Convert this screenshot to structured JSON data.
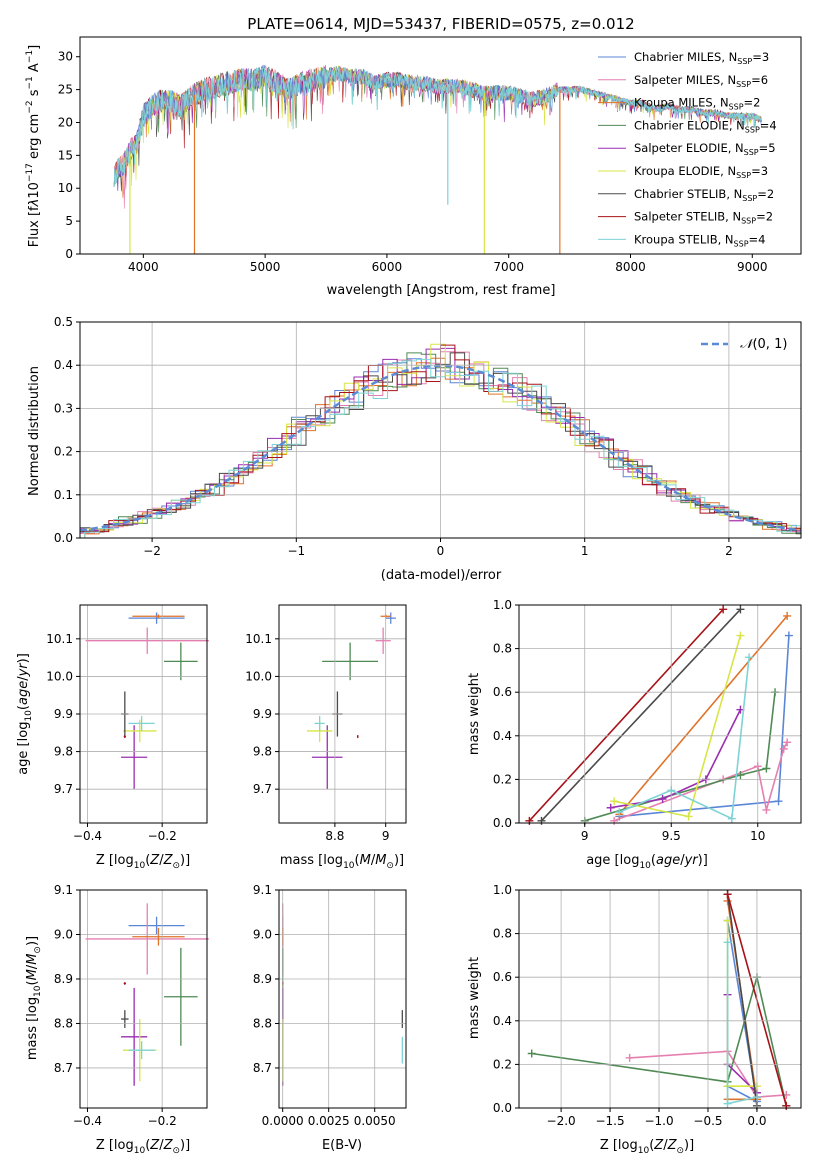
{
  "figure": {
    "title": "PLATE=0614, MJD=53437, FIBERID=0575, z=0.012"
  },
  "colors": {
    "chabrier_miles": "#5b86d6",
    "salpeter_miles": "#e57fb0",
    "kroupa_miles": "#e0732a",
    "chabrier_elodie": "#4f8a54",
    "salpeter_elodie": "#9a2db0",
    "kroupa_elodie": "#d7e645",
    "chabrier_stelib": "#4a4a4a",
    "salpeter_stelib": "#a81218",
    "kroupa_stelib": "#7ed3d6",
    "gauss": "#5b8bd6",
    "grid": "#b0b0b0"
  },
  "chart_data": [
    {
      "id": "spectrum",
      "type": "line",
      "title": "PLATE=0614, MJD=53437, FIBERID=0575, z=0.012",
      "xlabel": "wavelength [Angstrom, rest frame]",
      "ylabel": "Flux [f",
      "ylabel_full": "Flux [f_λ 10^-17 erg cm^-2 s^-1 A^-1]",
      "xlim": [
        3480,
        9400
      ],
      "ylim": [
        0,
        33
      ],
      "xticks": [
        4000,
        5000,
        6000,
        7000,
        8000,
        9000
      ],
      "yticks": [
        0,
        5,
        10,
        15,
        20,
        25,
        30
      ],
      "grid": false,
      "legend": "top-right",
      "legend_entries": [
        "Chabrier MILES, N_SSP=3",
        "Salpeter MILES, N_SSP=6",
        "Kroupa MILES, N_SSP=2",
        "Chabrier ELODIE, N_SSP=4",
        "Salpeter ELODIE, N_SSP=5",
        "Kroupa ELODIE, N_SSP=3",
        "Chabrier STELIB, N_SSP=2",
        "Salpeter STELIB, N_SSP=2",
        "Kroupa STELIB, N_SSP=4"
      ],
      "continuum": [
        [
          3760,
          12
        ],
        [
          3850,
          14
        ],
        [
          3900,
          16
        ],
        [
          3950,
          17
        ],
        [
          4000,
          21
        ],
        [
          4050,
          22
        ],
        [
          4100,
          23
        ],
        [
          4200,
          23.5
        ],
        [
          4300,
          22.5
        ],
        [
          4400,
          24
        ],
        [
          4500,
          25
        ],
        [
          4600,
          25.5
        ],
        [
          4700,
          26
        ],
        [
          4800,
          26.5
        ],
        [
          4900,
          26.5
        ],
        [
          5000,
          27
        ],
        [
          5100,
          26
        ],
        [
          5200,
          25
        ],
        [
          5300,
          26
        ],
        [
          5400,
          26.5
        ],
        [
          5500,
          27
        ],
        [
          5600,
          27.5
        ],
        [
          5700,
          27
        ],
        [
          5800,
          27
        ],
        [
          5900,
          26
        ],
        [
          6000,
          26.5
        ],
        [
          6100,
          26.5
        ],
        [
          6200,
          26
        ],
        [
          6300,
          26
        ],
        [
          6400,
          25.5
        ],
        [
          6500,
          25.5
        ],
        [
          6600,
          25.5
        ],
        [
          6700,
          25
        ],
        [
          6800,
          24.5
        ],
        [
          6900,
          24.5
        ],
        [
          7000,
          24.5
        ],
        [
          7100,
          24
        ],
        [
          7200,
          23.5
        ],
        [
          7300,
          24
        ],
        [
          7400,
          25
        ],
        [
          7500,
          25
        ],
        [
          7600,
          25
        ],
        [
          7700,
          24.5
        ],
        [
          7800,
          24
        ],
        [
          7900,
          23.5
        ],
        [
          8000,
          23
        ],
        [
          8100,
          23
        ],
        [
          8200,
          22
        ],
        [
          8300,
          22.5
        ],
        [
          8400,
          22
        ],
        [
          8500,
          22
        ],
        [
          8600,
          21.5
        ],
        [
          8700,
          21.5
        ],
        [
          8800,
          21
        ],
        [
          8900,
          21
        ],
        [
          9000,
          21
        ],
        [
          9080,
          20.5
        ]
      ],
      "drops": [
        {
          "x": 3890,
          "y": 0,
          "series": "kroupa_elodie"
        },
        {
          "x": 4420,
          "y": 0,
          "series": "kroupa_miles"
        },
        {
          "x": 6500,
          "y": 7.5,
          "series": "kroupa_stelib"
        },
        {
          "x": 6800,
          "y": 0,
          "series": "kroupa_elodie"
        },
        {
          "x": 7420,
          "y": 0,
          "series": "kroupa_miles"
        }
      ]
    },
    {
      "id": "residuals",
      "type": "histogram",
      "xlabel": "(data-model)/error",
      "ylabel": "Normed distribution",
      "xlim": [
        -2.5,
        2.5
      ],
      "ylim": [
        0,
        0.5
      ],
      "xticks": [
        -2,
        -1,
        0,
        1,
        2
      ],
      "yticks": [
        0.0,
        0.1,
        0.2,
        0.3,
        0.4,
        0.5
      ],
      "grid": true,
      "legend": "top-right",
      "legend_entries": [
        "N(0,1)"
      ],
      "bin_width": 0.1
    },
    {
      "id": "age_vs_Z",
      "type": "errorbar",
      "xlabel": "Z [log",
      "ylabel": "age  [log",
      "xlim": [
        -0.42,
        -0.08
      ],
      "ylim": [
        9.61,
        10.19
      ],
      "xticks": [
        -0.4,
        -0.2
      ],
      "yticks": [
        9.7,
        9.8,
        9.9,
        10.0,
        10.1
      ],
      "grid": true,
      "points": [
        {
          "series": "chabrier_miles",
          "x": -0.215,
          "y": 10.155,
          "xerr": 0.075,
          "yerr": 0.015
        },
        {
          "series": "salpeter_miles",
          "x": -0.24,
          "y": 10.095,
          "xerr": 0.165,
          "yerr": 0.035
        },
        {
          "series": "kroupa_miles",
          "x": -0.21,
          "y": 10.16,
          "xerr": 0.07,
          "yerr": 0.005
        },
        {
          "series": "chabrier_elodie",
          "x": -0.15,
          "y": 10.04,
          "xerr": 0.045,
          "yerr": 0.05
        },
        {
          "series": "salpeter_elodie",
          "x": -0.275,
          "y": 9.785,
          "xerr": 0.035,
          "yerr": 0.085
        },
        {
          "series": "kroupa_elodie",
          "x": -0.26,
          "y": 9.855,
          "xerr": 0.045,
          "yerr": 0.03
        },
        {
          "series": "chabrier_stelib",
          "x": -0.3,
          "y": 9.9,
          "xerr": 0.01,
          "yerr": 0.06
        },
        {
          "series": "salpeter_stelib",
          "x": -0.3,
          "y": 9.84,
          "xerr": 0.003,
          "yerr": 0.004
        },
        {
          "series": "kroupa_stelib",
          "x": -0.255,
          "y": 9.875,
          "xerr": 0.035,
          "yerr": 0.02
        }
      ]
    },
    {
      "id": "age_vs_mass",
      "type": "errorbar",
      "xlabel": "mass [log",
      "ylabel": "",
      "xlim": [
        8.58,
        9.08
      ],
      "ylim": [
        9.61,
        10.19
      ],
      "xticks": [
        8.8,
        9.0
      ],
      "yticks": [
        9.7,
        9.8,
        9.9,
        10.0,
        10.1
      ],
      "grid": true,
      "points": [
        {
          "series": "chabrier_miles",
          "x": 9.02,
          "y": 10.155,
          "xerr": 0.02,
          "yerr": 0.015
        },
        {
          "series": "salpeter_miles",
          "x": 8.99,
          "y": 10.095,
          "xerr": 0.03,
          "yerr": 0.035
        },
        {
          "series": "kroupa_miles",
          "x": 9.0,
          "y": 10.16,
          "xerr": 0.02,
          "yerr": 0.005
        },
        {
          "series": "chabrier_elodie",
          "x": 8.86,
          "y": 10.04,
          "xerr": 0.11,
          "yerr": 0.05
        },
        {
          "series": "salpeter_elodie",
          "x": 8.77,
          "y": 9.785,
          "xerr": 0.06,
          "yerr": 0.085
        },
        {
          "series": "kroupa_elodie",
          "x": 8.74,
          "y": 9.855,
          "xerr": 0.05,
          "yerr": 0.03
        },
        {
          "series": "chabrier_stelib",
          "x": 8.81,
          "y": 9.9,
          "xerr": 0.02,
          "yerr": 0.06
        },
        {
          "series": "salpeter_stelib",
          "x": 8.89,
          "y": 9.84,
          "xerr": 0.003,
          "yerr": 0.004
        },
        {
          "series": "kroupa_stelib",
          "x": 8.74,
          "y": 9.875,
          "xerr": 0.02,
          "yerr": 0.02
        }
      ]
    },
    {
      "id": "mass_weight_vs_age",
      "type": "line",
      "xlabel": "age  [log",
      "ylabel": "mass weight",
      "xlim": [
        8.62,
        10.25
      ],
      "ylim": [
        0,
        1
      ],
      "xticks": [
        9.0,
        9.5,
        10.0
      ],
      "yticks": [
        0.0,
        0.2,
        0.4,
        0.6,
        0.8,
        1.0
      ],
      "grid": true,
      "series": [
        {
          "series": "chabrier_miles",
          "points": [
            [
              9.2,
              0.03
            ],
            [
              10.12,
              0.1
            ],
            [
              10.18,
              0.86
            ]
          ]
        },
        {
          "series": "salpeter_miles",
          "points": [
            [
              9.17,
              0.01
            ],
            [
              9.8,
              0.2
            ],
            [
              10.0,
              0.26
            ],
            [
              10.05,
              0.06
            ],
            [
              10.15,
              0.34
            ],
            [
              10.17,
              0.37
            ]
          ]
        },
        {
          "series": "kroupa_miles",
          "points": [
            [
              9.2,
              0.04
            ],
            [
              10.17,
              0.95
            ]
          ]
        },
        {
          "series": "chabrier_elodie",
          "points": [
            [
              9.0,
              0.01
            ],
            [
              9.9,
              0.22
            ],
            [
              10.05,
              0.25
            ],
            [
              10.1,
              0.6
            ]
          ]
        },
        {
          "series": "salpeter_elodie",
          "points": [
            [
              9.15,
              0.07
            ],
            [
              9.45,
              0.11
            ],
            [
              9.7,
              0.2
            ],
            [
              9.9,
              0.52
            ]
          ]
        },
        {
          "series": "kroupa_elodie",
          "points": [
            [
              9.17,
              0.1
            ],
            [
              9.6,
              0.03
            ],
            [
              9.9,
              0.86
            ]
          ]
        },
        {
          "series": "chabrier_stelib",
          "points": [
            [
              8.75,
              0.01
            ],
            [
              9.9,
              0.98
            ]
          ]
        },
        {
          "series": "salpeter_stelib",
          "points": [
            [
              8.68,
              0.01
            ],
            [
              9.8,
              0.98
            ]
          ]
        },
        {
          "series": "kroupa_stelib",
          "points": [
            [
              9.2,
              0.05
            ],
            [
              9.5,
              0.15
            ],
            [
              9.85,
              0.02
            ],
            [
              9.95,
              0.76
            ]
          ]
        }
      ]
    },
    {
      "id": "mass_vs_Z",
      "type": "errorbar",
      "xlabel": "Z [log",
      "ylabel": "mass [log",
      "xlim": [
        -0.42,
        -0.08
      ],
      "ylim": [
        8.61,
        9.1
      ],
      "xticks": [
        -0.4,
        -0.2
      ],
      "yticks": [
        8.7,
        8.8,
        8.9,
        9.0,
        9.1
      ],
      "grid": true,
      "points": [
        {
          "series": "chabrier_miles",
          "x": -0.215,
          "y": 9.02,
          "xerr": 0.075,
          "yerr": 0.02
        },
        {
          "series": "salpeter_miles",
          "x": -0.24,
          "y": 8.99,
          "xerr": 0.165,
          "yerr": 0.08
        },
        {
          "series": "kroupa_miles",
          "x": -0.21,
          "y": 8.995,
          "xerr": 0.07,
          "yerr": 0.02
        },
        {
          "series": "chabrier_elodie",
          "x": -0.15,
          "y": 8.86,
          "xerr": 0.045,
          "yerr": 0.11
        },
        {
          "series": "salpeter_elodie",
          "x": -0.275,
          "y": 8.77,
          "xerr": 0.035,
          "yerr": 0.11
        },
        {
          "series": "kroupa_elodie",
          "x": -0.26,
          "y": 8.74,
          "xerr": 0.045,
          "yerr": 0.07
        },
        {
          "series": "chabrier_stelib",
          "x": -0.3,
          "y": 8.81,
          "xerr": 0.01,
          "yerr": 0.02
        },
        {
          "series": "salpeter_stelib",
          "x": -0.3,
          "y": 8.89,
          "xerr": 0.003,
          "yerr": 0.003
        },
        {
          "series": "kroupa_stelib",
          "x": -0.255,
          "y": 8.74,
          "xerr": 0.035,
          "yerr": 0.02
        }
      ]
    },
    {
      "id": "mass_vs_ebv",
      "type": "errorbar",
      "xlabel": "E(B-V)",
      "ylabel": "",
      "xlim": [
        -0.0002,
        0.0067
      ],
      "ylim": [
        8.61,
        9.1
      ],
      "xticks": [
        0.0,
        0.0025,
        0.005
      ],
      "xticklabels": [
        "0.0000",
        "0.0025",
        "0.0050"
      ],
      "yticks": [
        8.7,
        8.8,
        8.9,
        9.0,
        9.1
      ],
      "grid": true,
      "points": [
        {
          "series": "chabrier_miles",
          "x": 0.0,
          "y": 9.02,
          "xerr": 0,
          "yerr": 0.02
        },
        {
          "series": "salpeter_miles",
          "x": 0.0,
          "y": 8.99,
          "xerr": 0,
          "yerr": 0.08
        },
        {
          "series": "kroupa_miles",
          "x": 0.0,
          "y": 8.995,
          "xerr": 0,
          "yerr": 0.02
        },
        {
          "series": "chabrier_elodie",
          "x": 0.0,
          "y": 8.86,
          "xerr": 0,
          "yerr": 0.11
        },
        {
          "series": "salpeter_elodie",
          "x": 0.0,
          "y": 8.77,
          "xerr": 0,
          "yerr": 0.11
        },
        {
          "series": "kroupa_elodie",
          "x": 0.0,
          "y": 8.74,
          "xerr": 0,
          "yerr": 0.07
        },
        {
          "series": "chabrier_stelib",
          "x": 0.0065,
          "y": 8.81,
          "xerr": 0,
          "yerr": 0.02
        },
        {
          "series": "salpeter_stelib",
          "x": 0.0,
          "y": 8.89,
          "xerr": 0,
          "yerr": 0.003
        },
        {
          "series": "kroupa_stelib",
          "x": 0.0065,
          "y": 8.74,
          "xerr": 0,
          "yerr": 0.03
        }
      ]
    },
    {
      "id": "mass_weight_vs_Z",
      "type": "line",
      "xlabel": "Z [log",
      "ylabel": "mass weight",
      "xlim": [
        -2.43,
        0.45
      ],
      "ylim": [
        0,
        1
      ],
      "xticks": [
        -2.0,
        -1.5,
        -1.0,
        -0.5,
        0.0
      ],
      "xticklabels": [
        "−2.0",
        "−1.5",
        "−1.0",
        "−0.5",
        "0.0"
      ],
      "yticks": [
        0.0,
        0.2,
        0.4,
        0.6,
        0.8,
        1.0
      ],
      "grid": true,
      "series": [
        {
          "series": "chabrier_miles",
          "points": [
            [
              -0.3,
              0.1
            ],
            [
              0.0,
              0.03
            ],
            [
              -0.3,
              0.86
            ]
          ]
        },
        {
          "series": "salpeter_miles",
          "points": [
            [
              -1.3,
              0.23
            ],
            [
              -0.3,
              0.26
            ],
            [
              0.0,
              0.05
            ],
            [
              0.3,
              0.06
            ]
          ]
        },
        {
          "series": "kroupa_miles",
          "points": [
            [
              -0.3,
              0.04
            ],
            [
              0.0,
              0.04
            ],
            [
              -0.3,
              0.95
            ]
          ]
        },
        {
          "series": "chabrier_elodie",
          "points": [
            [
              -2.3,
              0.25
            ],
            [
              -0.3,
              0.12
            ],
            [
              0.0,
              0.6
            ],
            [
              0.3,
              0.01
            ]
          ]
        },
        {
          "series": "salpeter_elodie",
          "points": [
            [
              -0.3,
              0.52
            ],
            [
              -0.3,
              0.2
            ],
            [
              0.0,
              0.07
            ]
          ]
        },
        {
          "series": "kroupa_elodie",
          "points": [
            [
              -0.3,
              0.86
            ],
            [
              -0.3,
              0.1
            ],
            [
              0.0,
              0.1
            ]
          ]
        },
        {
          "series": "chabrier_stelib",
          "points": [
            [
              -0.3,
              0.98
            ],
            [
              0.0,
              0.01
            ]
          ]
        },
        {
          "series": "salpeter_stelib",
          "points": [
            [
              -0.3,
              0.98
            ],
            [
              0.3,
              0.01
            ]
          ]
        },
        {
          "series": "kroupa_stelib",
          "points": [
            [
              -0.3,
              0.76
            ],
            [
              -0.3,
              0.02
            ],
            [
              0.0,
              0.05
            ]
          ]
        }
      ]
    }
  ]
}
